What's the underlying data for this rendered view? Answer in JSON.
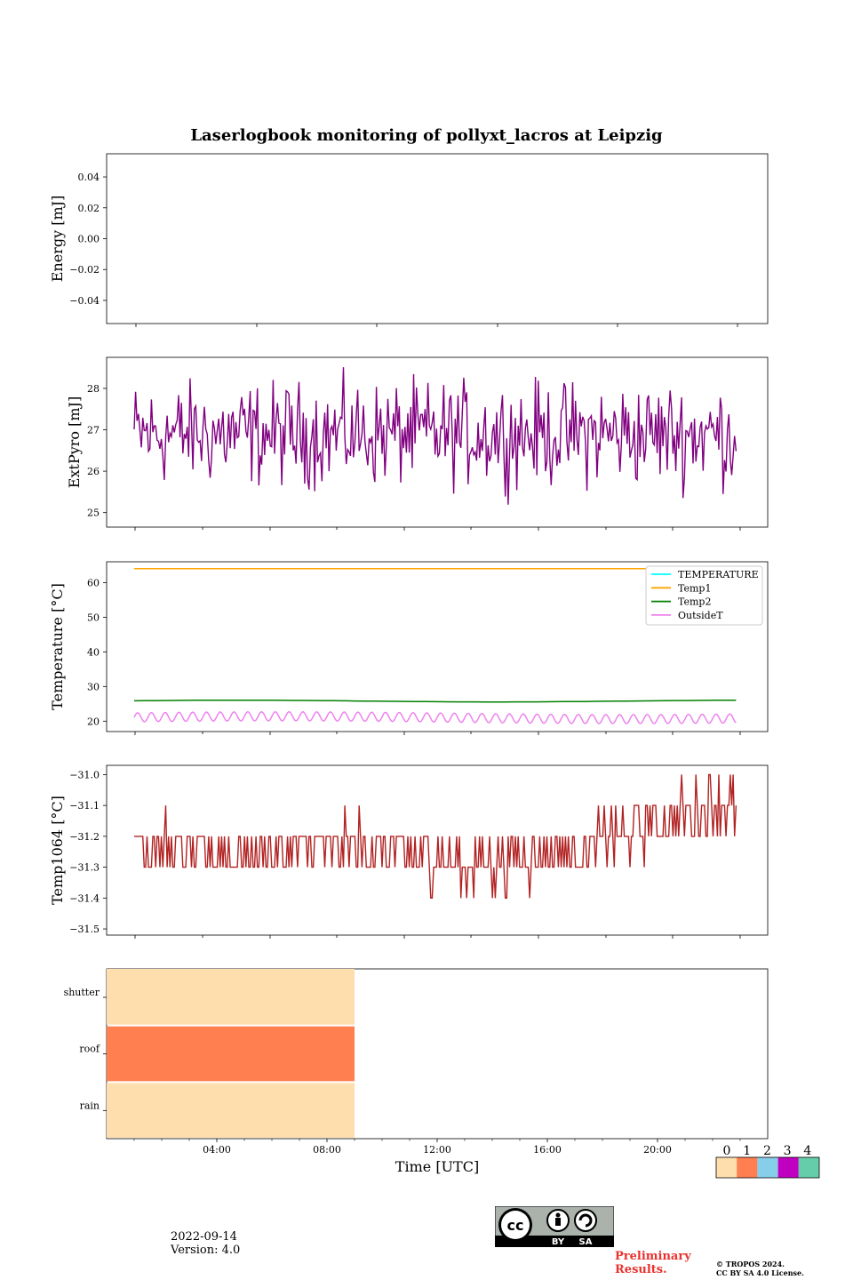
{
  "title": "Laserlogbook monitoring of pollyxt_lacros at Leipzig",
  "footer": {
    "date": "2022-09-14",
    "version": "Version: 4.0",
    "preliminary_line1": "Preliminary",
    "preliminary_line2": "Results.",
    "copyright_line1": "© TROPOS 2024.",
    "copyright_line2": "CC BY SA 4.0 License.",
    "cc_badge_labels": [
      "BY",
      "SA"
    ]
  },
  "colors": {
    "extpyro": "#800080",
    "temperature": "#00ffff",
    "temp1": "#ffa500",
    "temp2": "#008000",
    "outsidet": "#ee82ee",
    "temp1064": "#b22222",
    "status": [
      "#ffdead",
      "#ff7f50",
      "#87ceeb",
      "#c000c0",
      "#66cdaa"
    ]
  },
  "chart_data": [
    {
      "type": "line",
      "ylabel": "Energy [mJ]",
      "ylim": [
        -0.055,
        0.055
      ],
      "yticks": [
        0.04,
        0.02,
        0.0,
        -0.02,
        -0.04
      ],
      "ytick_labels": [
        "0.04",
        "0.02",
        "0.00",
        "−0.02",
        "−0.04"
      ],
      "series": []
    },
    {
      "type": "line",
      "ylabel": "ExtPyro [mJ]",
      "ylim": [
        24.65,
        28.75
      ],
      "yticks": [
        25,
        26,
        27,
        28
      ],
      "ytick_labels": [
        "25",
        "26",
        "27",
        "28"
      ],
      "series": [
        {
          "color": "extpyro",
          "x_range_hours": [
            1.0,
            22.85
          ],
          "mean": 26.9,
          "spread": 0.75,
          "min": 24.8,
          "max": 28.55
        }
      ]
    },
    {
      "type": "line",
      "ylabel": "Temperature [°C]",
      "ylim": [
        17,
        66
      ],
      "yticks": [
        20,
        30,
        40,
        50,
        60
      ],
      "ytick_labels": [
        "20",
        "30",
        "40",
        "50",
        "60"
      ],
      "legend": "top-right",
      "series": [
        {
          "name": "TEMPERATURE",
          "color": "temperature",
          "values": []
        },
        {
          "name": "Temp1",
          "color": "temp1",
          "x_range_hours": [
            1.0,
            22.85
          ],
          "value": 64
        },
        {
          "name": "Temp2",
          "color": "temp2",
          "x_range_hours": [
            1.0,
            22.85
          ],
          "value": 25.8
        },
        {
          "name": "OutsideT",
          "color": "outsidet",
          "x_range_hours": [
            1.0,
            22.85
          ],
          "center": 21,
          "amplitude": 1.3,
          "period_hours": 0.5
        }
      ]
    },
    {
      "type": "line",
      "ylabel": "Temp1064 [°C]",
      "ylim": [
        -31.52,
        -30.97
      ],
      "yticks": [
        -31.0,
        -31.1,
        -31.2,
        -31.3,
        -31.4,
        -31.5
      ],
      "ytick_labels": [
        "−31.0",
        "−31.1",
        "−31.2",
        "−31.3",
        "−31.4",
        "−31.5"
      ],
      "series": [
        {
          "color": "temp1064",
          "x_range_hours": [
            1.0,
            22.85
          ],
          "step": 0.1,
          "trend_hours": [
            1,
            5,
            9,
            13,
            17,
            21,
            22.85
          ],
          "trend_values": [
            -31.22,
            -31.27,
            -31.22,
            -31.3,
            -31.25,
            -31.12,
            -31.1
          ]
        }
      ]
    },
    {
      "type": "heatmap",
      "xlabel": "Time [UTC]",
      "xlim_hours": [
        0,
        24
      ],
      "xticks_hours": [
        4,
        8,
        12,
        16,
        20
      ],
      "xtick_labels": [
        "04:00",
        "08:00",
        "12:00",
        "16:00",
        "20:00"
      ],
      "rows": [
        "shutter",
        "roof",
        "rain"
      ],
      "segments": [
        {
          "row": "shutter",
          "x_hours": [
            0,
            9
          ],
          "status": 0
        },
        {
          "row": "roof",
          "x_hours": [
            0,
            9
          ],
          "status": 1
        },
        {
          "row": "rain",
          "x_hours": [
            0,
            9
          ],
          "status": 0
        }
      ],
      "colorbar_labels": [
        "0",
        "1",
        "2",
        "3",
        "4"
      ]
    }
  ]
}
